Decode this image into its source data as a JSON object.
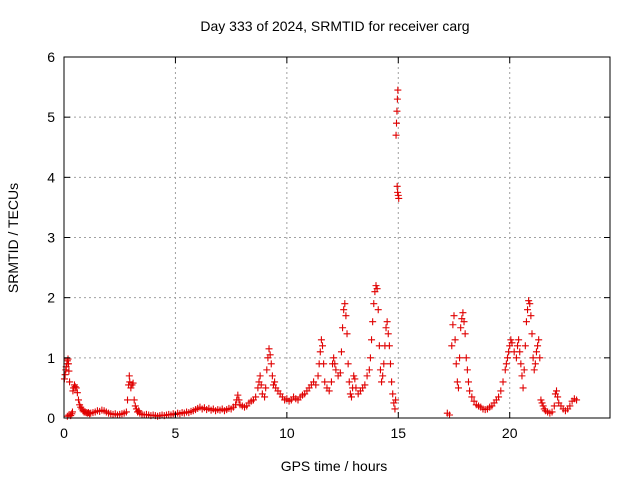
{
  "chart_data": {
    "type": "scatter",
    "title": "Day 333 of 2024, SRMTID for receiver carg",
    "xlabel": "GPS time / hours",
    "ylabel": "SRMTID / TECUs",
    "xlim": [
      0,
      24.5
    ],
    "ylim": [
      0,
      6
    ],
    "xticks": [
      0,
      5,
      10,
      15,
      20
    ],
    "yticks": [
      0,
      1,
      2,
      3,
      4,
      5,
      6
    ],
    "grid": true,
    "marker": "+",
    "color": "#e00000",
    "series": [
      {
        "name": "SRMTID",
        "points": [
          [
            0.02,
            0.65
          ],
          [
            0.05,
            0.72
          ],
          [
            0.08,
            0.8
          ],
          [
            0.1,
            0.85
          ],
          [
            0.13,
            0.9
          ],
          [
            0.15,
            0.95
          ],
          [
            0.18,
            0.98
          ],
          [
            0.2,
            0.9
          ],
          [
            0.22,
            0.78
          ],
          [
            0.25,
            0.6
          ],
          [
            0.15,
            0.03
          ],
          [
            0.22,
            0.05
          ],
          [
            0.3,
            0.04
          ],
          [
            0.35,
            0.07
          ],
          [
            0.38,
            0.1
          ],
          [
            0.4,
            0.45
          ],
          [
            0.43,
            0.5
          ],
          [
            0.47,
            0.55
          ],
          [
            0.5,
            0.52
          ],
          [
            0.55,
            0.5
          ],
          [
            0.6,
            0.42
          ],
          [
            0.65,
            0.3
          ],
          [
            0.7,
            0.22
          ],
          [
            0.75,
            0.18
          ],
          [
            0.8,
            0.15
          ],
          [
            0.85,
            0.12
          ],
          [
            0.9,
            0.1
          ],
          [
            0.95,
            0.1
          ],
          [
            1.0,
            0.09
          ],
          [
            1.05,
            0.08
          ],
          [
            1.1,
            0.09
          ],
          [
            1.15,
            0.07
          ],
          [
            1.2,
            0.08
          ],
          [
            1.3,
            0.09
          ],
          [
            1.4,
            0.1
          ],
          [
            1.5,
            0.12
          ],
          [
            1.6,
            0.11
          ],
          [
            1.7,
            0.13
          ],
          [
            1.8,
            0.12
          ],
          [
            1.9,
            0.1
          ],
          [
            2.0,
            0.08
          ],
          [
            2.1,
            0.07
          ],
          [
            2.2,
            0.06
          ],
          [
            2.3,
            0.07
          ],
          [
            2.4,
            0.05
          ],
          [
            2.5,
            0.06
          ],
          [
            2.6,
            0.07
          ],
          [
            2.7,
            0.08
          ],
          [
            2.8,
            0.1
          ],
          [
            2.85,
            0.3
          ],
          [
            2.9,
            0.55
          ],
          [
            2.93,
            0.7
          ],
          [
            2.95,
            0.6
          ],
          [
            3.0,
            0.5
          ],
          [
            3.05,
            0.55
          ],
          [
            3.1,
            0.58
          ],
          [
            3.15,
            0.3
          ],
          [
            3.2,
            0.2
          ],
          [
            3.25,
            0.15
          ],
          [
            3.3,
            0.1
          ],
          [
            3.35,
            0.12
          ],
          [
            3.4,
            0.08
          ],
          [
            3.5,
            0.06
          ],
          [
            3.6,
            0.05
          ],
          [
            3.7,
            0.06
          ],
          [
            3.8,
            0.05
          ],
          [
            3.9,
            0.04
          ],
          [
            4.0,
            0.05
          ],
          [
            4.1,
            0.04
          ],
          [
            4.2,
            0.03
          ],
          [
            4.3,
            0.04
          ],
          [
            4.4,
            0.05
          ],
          [
            4.5,
            0.04
          ],
          [
            4.6,
            0.05
          ],
          [
            4.7,
            0.06
          ],
          [
            4.8,
            0.05
          ],
          [
            4.9,
            0.07
          ],
          [
            5.0,
            0.06
          ],
          [
            5.1,
            0.08
          ],
          [
            5.2,
            0.07
          ],
          [
            5.3,
            0.09
          ],
          [
            5.4,
            0.08
          ],
          [
            5.5,
            0.1
          ],
          [
            5.6,
            0.09
          ],
          [
            5.7,
            0.11
          ],
          [
            5.8,
            0.12
          ],
          [
            5.9,
            0.14
          ],
          [
            6.0,
            0.16
          ],
          [
            6.1,
            0.18
          ],
          [
            6.2,
            0.15
          ],
          [
            6.3,
            0.17
          ],
          [
            6.4,
            0.14
          ],
          [
            6.5,
            0.16
          ],
          [
            6.6,
            0.13
          ],
          [
            6.7,
            0.15
          ],
          [
            6.8,
            0.12
          ],
          [
            6.9,
            0.14
          ],
          [
            7.0,
            0.13
          ],
          [
            7.1,
            0.15
          ],
          [
            7.2,
            0.12
          ],
          [
            7.3,
            0.14
          ],
          [
            7.4,
            0.16
          ],
          [
            7.5,
            0.15
          ],
          [
            7.6,
            0.18
          ],
          [
            7.7,
            0.22
          ],
          [
            7.75,
            0.3
          ],
          [
            7.8,
            0.38
          ],
          [
            7.85,
            0.3
          ],
          [
            7.9,
            0.22
          ],
          [
            8.0,
            0.2
          ],
          [
            8.1,
            0.18
          ],
          [
            8.2,
            0.2
          ],
          [
            8.3,
            0.25
          ],
          [
            8.4,
            0.28
          ],
          [
            8.5,
            0.3
          ],
          [
            8.6,
            0.35
          ],
          [
            8.7,
            0.5
          ],
          [
            8.75,
            0.6
          ],
          [
            8.8,
            0.7
          ],
          [
            8.85,
            0.55
          ],
          [
            8.9,
            0.4
          ],
          [
            9.0,
            0.35
          ],
          [
            9.05,
            0.5
          ],
          [
            9.1,
            0.8
          ],
          [
            9.15,
            1.0
          ],
          [
            9.2,
            1.15
          ],
          [
            9.25,
            1.05
          ],
          [
            9.3,
            0.9
          ],
          [
            9.35,
            0.7
          ],
          [
            9.4,
            0.55
          ],
          [
            9.45,
            0.6
          ],
          [
            9.5,
            0.5
          ],
          [
            9.6,
            0.45
          ],
          [
            9.7,
            0.4
          ],
          [
            9.8,
            0.35
          ],
          [
            9.9,
            0.3
          ],
          [
            10.0,
            0.32
          ],
          [
            10.1,
            0.28
          ],
          [
            10.2,
            0.3
          ],
          [
            10.3,
            0.35
          ],
          [
            10.4,
            0.32
          ],
          [
            10.5,
            0.3
          ],
          [
            10.6,
            0.35
          ],
          [
            10.7,
            0.38
          ],
          [
            10.8,
            0.4
          ],
          [
            10.9,
            0.45
          ],
          [
            11.0,
            0.5
          ],
          [
            11.1,
            0.55
          ],
          [
            11.2,
            0.6
          ],
          [
            11.3,
            0.55
          ],
          [
            11.4,
            0.7
          ],
          [
            11.45,
            0.9
          ],
          [
            11.5,
            1.1
          ],
          [
            11.55,
            1.3
          ],
          [
            11.6,
            1.2
          ],
          [
            11.65,
            0.9
          ],
          [
            11.7,
            0.6
          ],
          [
            11.8,
            0.5
          ],
          [
            11.9,
            0.45
          ],
          [
            12.0,
            0.6
          ],
          [
            12.05,
            0.9
          ],
          [
            12.1,
            1.0
          ],
          [
            12.15,
            0.9
          ],
          [
            12.2,
            0.8
          ],
          [
            12.3,
            0.7
          ],
          [
            12.4,
            0.75
          ],
          [
            12.45,
            1.1
          ],
          [
            12.5,
            1.5
          ],
          [
            12.55,
            1.8
          ],
          [
            12.6,
            1.9
          ],
          [
            12.65,
            1.7
          ],
          [
            12.7,
            1.4
          ],
          [
            12.75,
            0.9
          ],
          [
            12.8,
            0.6
          ],
          [
            12.85,
            0.4
          ],
          [
            12.9,
            0.35
          ],
          [
            12.95,
            0.5
          ],
          [
            13.0,
            0.7
          ],
          [
            13.05,
            0.65
          ],
          [
            13.1,
            0.5
          ],
          [
            13.2,
            0.4
          ],
          [
            13.3,
            0.45
          ],
          [
            13.4,
            0.5
          ],
          [
            13.5,
            0.55
          ],
          [
            13.6,
            0.7
          ],
          [
            13.7,
            0.8
          ],
          [
            13.75,
            1.0
          ],
          [
            13.8,
            1.3
          ],
          [
            13.85,
            1.6
          ],
          [
            13.9,
            1.9
          ],
          [
            13.95,
            2.1
          ],
          [
            14.0,
            2.2
          ],
          [
            14.05,
            2.15
          ],
          [
            14.1,
            1.8
          ],
          [
            14.15,
            1.2
          ],
          [
            14.2,
            0.8
          ],
          [
            14.25,
            0.6
          ],
          [
            14.3,
            0.7
          ],
          [
            14.35,
            0.9
          ],
          [
            14.4,
            1.2
          ],
          [
            14.45,
            1.5
          ],
          [
            14.5,
            1.6
          ],
          [
            14.55,
            1.4
          ],
          [
            14.6,
            1.2
          ],
          [
            14.65,
            0.9
          ],
          [
            14.7,
            0.6
          ],
          [
            14.75,
            0.4
          ],
          [
            14.8,
            0.25
          ],
          [
            14.85,
            0.15
          ],
          [
            14.88,
            0.3
          ],
          [
            14.9,
            4.7
          ],
          [
            14.92,
            4.9
          ],
          [
            14.94,
            5.1
          ],
          [
            14.96,
            5.3
          ],
          [
            14.98,
            5.45
          ],
          [
            14.95,
            3.85
          ],
          [
            14.97,
            3.75
          ],
          [
            15.0,
            3.7
          ],
          [
            15.02,
            3.65
          ],
          [
            17.2,
            0.08
          ],
          [
            17.3,
            0.05
          ],
          [
            17.4,
            1.2
          ],
          [
            17.45,
            1.55
          ],
          [
            17.5,
            1.7
          ],
          [
            17.55,
            1.3
          ],
          [
            17.6,
            0.9
          ],
          [
            17.65,
            0.6
          ],
          [
            17.7,
            0.5
          ],
          [
            17.75,
            1.0
          ],
          [
            17.8,
            1.5
          ],
          [
            17.85,
            1.65
          ],
          [
            17.9,
            1.75
          ],
          [
            17.95,
            1.6
          ],
          [
            18.0,
            1.4
          ],
          [
            18.05,
            1.0
          ],
          [
            18.1,
            0.8
          ],
          [
            18.15,
            0.6
          ],
          [
            18.2,
            0.45
          ],
          [
            18.3,
            0.35
          ],
          [
            18.4,
            0.28
          ],
          [
            18.5,
            0.22
          ],
          [
            18.6,
            0.2
          ],
          [
            18.7,
            0.18
          ],
          [
            18.8,
            0.15
          ],
          [
            18.9,
            0.14
          ],
          [
            19.0,
            0.15
          ],
          [
            19.1,
            0.18
          ],
          [
            19.2,
            0.2
          ],
          [
            19.3,
            0.25
          ],
          [
            19.4,
            0.3
          ],
          [
            19.5,
            0.35
          ],
          [
            19.6,
            0.45
          ],
          [
            19.7,
            0.6
          ],
          [
            19.8,
            0.8
          ],
          [
            19.85,
            0.9
          ],
          [
            19.9,
            1.0
          ],
          [
            19.95,
            1.1
          ],
          [
            20.0,
            1.2
          ],
          [
            20.05,
            1.3
          ],
          [
            20.1,
            1.25
          ],
          [
            20.2,
            1.1
          ],
          [
            20.3,
            1.0
          ],
          [
            20.35,
            1.2
          ],
          [
            20.4,
            1.3
          ],
          [
            20.45,
            1.1
          ],
          [
            20.5,
            0.9
          ],
          [
            20.55,
            0.7
          ],
          [
            20.6,
            0.5
          ],
          [
            20.65,
            0.8
          ],
          [
            20.7,
            1.2
          ],
          [
            20.75,
            1.6
          ],
          [
            20.8,
            1.8
          ],
          [
            20.85,
            1.95
          ],
          [
            20.9,
            1.9
          ],
          [
            20.95,
            1.7
          ],
          [
            21.0,
            1.4
          ],
          [
            21.05,
            1.0
          ],
          [
            21.1,
            0.8
          ],
          [
            21.15,
            0.9
          ],
          [
            21.2,
            1.1
          ],
          [
            21.25,
            1.2
          ],
          [
            21.3,
            1.3
          ],
          [
            21.35,
            1.0
          ],
          [
            21.4,
            0.3
          ],
          [
            21.45,
            0.25
          ],
          [
            21.5,
            0.2
          ],
          [
            21.55,
            0.15
          ],
          [
            21.6,
            0.12
          ],
          [
            21.7,
            0.1
          ],
          [
            21.8,
            0.08
          ],
          [
            21.9,
            0.1
          ],
          [
            22.0,
            0.2
          ],
          [
            22.05,
            0.4
          ],
          [
            22.1,
            0.45
          ],
          [
            22.15,
            0.35
          ],
          [
            22.2,
            0.25
          ],
          [
            22.3,
            0.2
          ],
          [
            22.4,
            0.15
          ],
          [
            22.5,
            0.12
          ],
          [
            22.6,
            0.15
          ],
          [
            22.7,
            0.2
          ],
          [
            22.8,
            0.28
          ],
          [
            22.9,
            0.32
          ],
          [
            23.0,
            0.3
          ]
        ]
      }
    ]
  }
}
